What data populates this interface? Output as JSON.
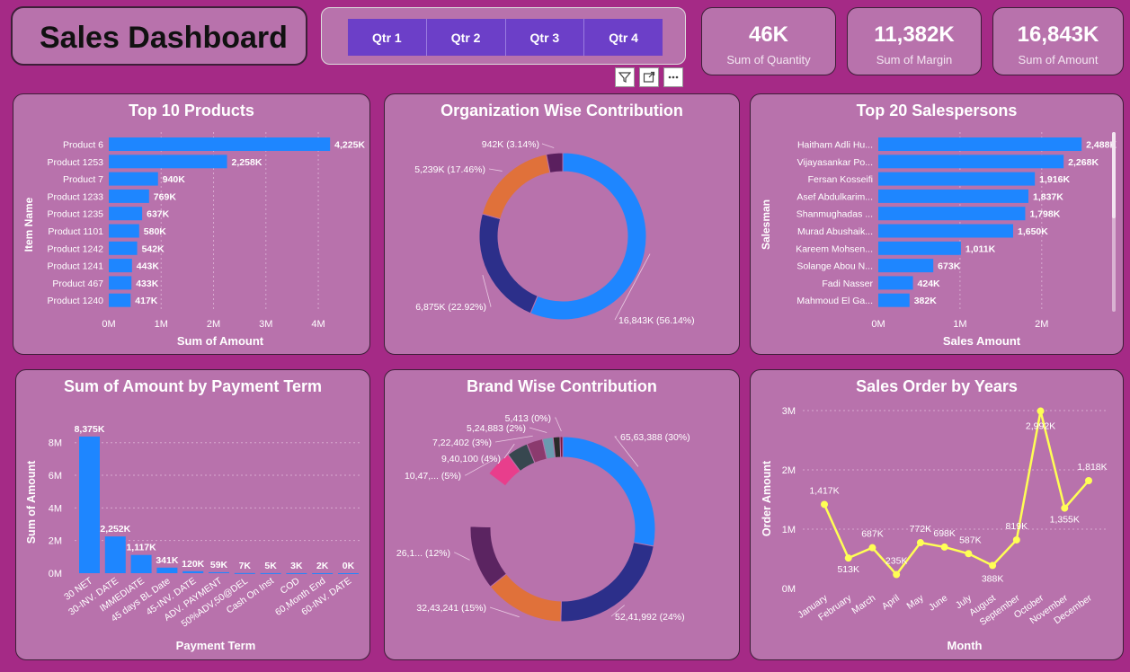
{
  "header": {
    "title": "Sales Dashboard"
  },
  "slicer": {
    "quarters": [
      "Qtr 1",
      "Qtr 2",
      "Qtr 3",
      "Qtr 4"
    ]
  },
  "toolbar": {
    "filter_icon": "filter-icon",
    "focus_icon": "focus-mode-icon",
    "more_icon": "more-options-icon"
  },
  "kpis": [
    {
      "value": "46K",
      "label": "Sum of Quantity"
    },
    {
      "value": "11,382K",
      "label": "Sum of Margin"
    },
    {
      "value": "16,843K",
      "label": "Sum of Amount"
    }
  ],
  "colors": {
    "bar": "#1e86ff",
    "line": "#ffff55",
    "background": "#a52a86",
    "card": "#b872ac"
  },
  "chart_data": [
    {
      "id": "top10products",
      "type": "bar",
      "orientation": "horizontal",
      "title": "Top 10 Products",
      "xlabel": "Sum of Amount",
      "ylabel": "Item Name",
      "categories": [
        "Product 6",
        "Product 1253",
        "Product 7",
        "Product 1233",
        "Product 1235",
        "Product 1101",
        "Product 1242",
        "Product 1241",
        "Product 467",
        "Product 1240"
      ],
      "values": [
        4225,
        2258,
        940,
        769,
        637,
        580,
        542,
        443,
        433,
        417
      ],
      "data_labels": [
        "4,225K",
        "2,258K",
        "940K",
        "769K",
        "637K",
        "580K",
        "542K",
        "443K",
        "433K",
        "417K"
      ],
      "xticks": [
        0,
        1000,
        2000,
        3000,
        4000
      ],
      "xtick_labels": [
        "0M",
        "1M",
        "2M",
        "3M",
        "4M"
      ],
      "xlim": [
        0,
        4600
      ]
    },
    {
      "id": "orgdonut",
      "type": "pie",
      "title": "Organization Wise Contribution",
      "values": [
        56.14,
        22.92,
        17.46,
        3.14
      ],
      "labels": [
        "16,843K (56.14%)",
        "6,875K (22.92%)",
        "5,239K (17.46%)",
        "942K (3.14%)"
      ],
      "colors": [
        "#1e86ff",
        "#2c2f8a",
        "#e0713a",
        "#5a1f5e"
      ]
    },
    {
      "id": "top20sales",
      "type": "bar",
      "orientation": "horizontal",
      "title": "Top 20 Salespersons",
      "xlabel": "Sales Amount",
      "ylabel": "Salesman",
      "categories": [
        "Haitham Adli Hu...",
        "Vijayasankar Po...",
        "Fersan Kosseifi",
        "Asef Abdulkarim...",
        "Shanmughadas ...",
        "Murad Abushaik...",
        "Kareem Mohsen...",
        "Solange Abou N...",
        "Fadi Nasser",
        "Mahmoud El Ga..."
      ],
      "values": [
        2488,
        2268,
        1916,
        1837,
        1798,
        1650,
        1011,
        673,
        424,
        382
      ],
      "data_labels": [
        "2,488K",
        "2,268K",
        "1,916K",
        "1,837K",
        "1,798K",
        "1,650K",
        "1,011K",
        "673K",
        "424K",
        "382K"
      ],
      "xticks": [
        0,
        1000,
        2000
      ],
      "xtick_labels": [
        "0M",
        "1M",
        "2M"
      ],
      "xlim": [
        0,
        2750
      ]
    },
    {
      "id": "paymentterm",
      "type": "bar",
      "orientation": "vertical",
      "title": "Sum of Amount by Payment Term",
      "xlabel": "Payment Term",
      "ylabel": "Sum of Amount",
      "categories": [
        "30 NET",
        "30-INV. DATE",
        "IMMEDIATE",
        "45 days BL Date",
        "45-INV. DATE",
        "ADV. PAYMENT",
        "50%ADV,50@DEL",
        "Cash On Inst",
        "COD",
        "60,Month End",
        "60-INV. DATE"
      ],
      "values": [
        8375,
        2252,
        1117,
        341,
        120,
        59,
        7,
        5,
        3,
        2,
        0
      ],
      "data_labels": [
        "8,375K",
        "2,252K",
        "1,117K",
        "341K",
        "120K",
        "59K",
        "7K",
        "5K",
        "3K",
        "2K",
        "0K"
      ],
      "yticks": [
        0,
        2000,
        4000,
        6000,
        8000
      ],
      "ytick_labels": [
        "0M",
        "2M",
        "4M",
        "6M",
        "8M"
      ],
      "ylim": [
        0,
        8700
      ]
    },
    {
      "id": "branddonut",
      "type": "pie",
      "title": "Brand Wise Contribution",
      "values": [
        30,
        24,
        15,
        12,
        10.5,
        5,
        4,
        3,
        2,
        1.3,
        0.5
      ],
      "labels": [
        "65,63,388 (30%)",
        "52,41,992 (24%)",
        "32,43,241 (15%)",
        "26,1... (12%)",
        "",
        "10,47,... (5%)",
        "9,40,100 (4%)",
        "7,22,402 (3%)",
        "5,24,883 (2%)",
        "",
        "5,413 (0%)"
      ],
      "colors": [
        "#1e86ff",
        "#2c2f8a",
        "#e0713a",
        "#5b2461",
        "#b872ac",
        "#e83e8c",
        "#37474f",
        "#8b3a6e",
        "#6a9bb0",
        "#2a2a2a",
        "#7a1540"
      ]
    },
    {
      "id": "salesbyyears",
      "type": "line",
      "title": "Sales Order by Years",
      "xlabel": "Month",
      "ylabel": "Order Amount",
      "categories": [
        "January",
        "February",
        "March",
        "April",
        "May",
        "June",
        "July",
        "August",
        "September",
        "October",
        "November",
        "December"
      ],
      "values": [
        1417,
        513,
        687,
        235,
        772,
        698,
        587,
        388,
        819,
        2992,
        1355,
        1818
      ],
      "data_labels": [
        "1,417K",
        "513K",
        "687K",
        "235K",
        "772K",
        "698K",
        "587K",
        "388K",
        "819K",
        "2,992K",
        "1,355K",
        "1,818K"
      ],
      "yticks": [
        0,
        1000,
        2000,
        3000
      ],
      "ytick_labels": [
        "0M",
        "1M",
        "2M",
        "3M"
      ],
      "ylim": [
        0,
        3000
      ]
    }
  ]
}
